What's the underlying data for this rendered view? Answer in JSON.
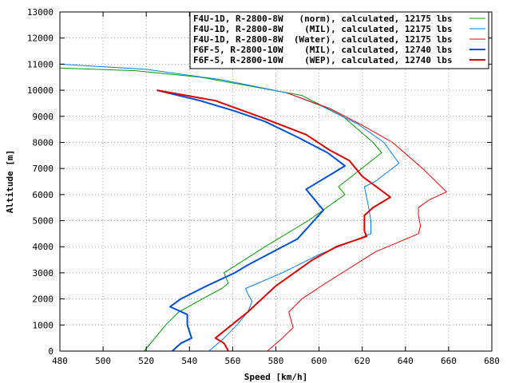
{
  "chart_data": {
    "type": "line",
    "xlabel": "Speed [km/h]",
    "ylabel": "Altitude [m]",
    "xlim": [
      480,
      680
    ],
    "ylim": [
      0,
      13000
    ],
    "xticks": [
      480,
      500,
      520,
      540,
      560,
      580,
      600,
      620,
      640,
      660,
      680
    ],
    "yticks": [
      0,
      1000,
      2000,
      3000,
      4000,
      5000,
      6000,
      7000,
      8000,
      9000,
      10000,
      11000,
      12000,
      13000
    ],
    "grid": true,
    "legend_position": "top-right",
    "series": [
      {
        "name": "F4U-1D, R-2800-8W   (norm), calculated, 12175 lbs",
        "color": "#00a000",
        "width": 1,
        "points": [
          [
            519,
            0
          ],
          [
            524,
            500
          ],
          [
            529,
            1000
          ],
          [
            535,
            1500
          ],
          [
            546,
            2000
          ],
          [
            555,
            2400
          ],
          [
            558,
            2600
          ],
          [
            556,
            3000
          ],
          [
            575,
            4000
          ],
          [
            595,
            5000
          ],
          [
            612,
            6000
          ],
          [
            609,
            6300
          ],
          [
            629,
            7600
          ],
          [
            625,
            8000
          ],
          [
            611,
            9000
          ],
          [
            592,
            9800
          ],
          [
            545,
            10500
          ],
          [
            515,
            10750
          ],
          [
            480,
            10850
          ]
        ]
      },
      {
        "name": "F4U-1D, R-2800-8W    (MIL), calculated, 12175 lbs",
        "color": "#0080ff",
        "width": 1,
        "points": [
          [
            549,
            0
          ],
          [
            556,
            500
          ],
          [
            562,
            1000
          ],
          [
            567,
            1500
          ],
          [
            569,
            1900
          ],
          [
            567,
            2200
          ],
          [
            566,
            2400
          ],
          [
            583,
            3000
          ],
          [
            600,
            3700
          ],
          [
            624,
            4500
          ],
          [
            624,
            5000
          ],
          [
            623,
            5500
          ],
          [
            621,
            6300
          ],
          [
            626,
            6500
          ],
          [
            637,
            7200
          ],
          [
            630,
            8000
          ],
          [
            618,
            8700
          ],
          [
            601,
            9400
          ],
          [
            585,
            9900
          ],
          [
            555,
            10400
          ],
          [
            520,
            10800
          ],
          [
            480,
            11000
          ]
        ]
      },
      {
        "name": "F4U-1D, R-2800-8W  (Water), calculated, 12175 lbs",
        "color": "#ff0000",
        "width": 1,
        "points": [
          [
            576,
            0
          ],
          [
            583,
            500
          ],
          [
            588,
            900
          ],
          [
            586,
            1500
          ],
          [
            592,
            2000
          ],
          [
            603,
            2600
          ],
          [
            626,
            3800
          ],
          [
            646,
            4500
          ],
          [
            647,
            4800
          ],
          [
            646,
            5200
          ],
          [
            646,
            5500
          ],
          [
            651,
            5800
          ],
          [
            659,
            6100
          ],
          [
            648,
            7000
          ],
          [
            634,
            8000
          ],
          [
            619,
            8700
          ],
          [
            605,
            9300
          ],
          [
            585,
            9900
          ]
        ]
      },
      {
        "name": "F6F-5, R-2800-10W    (MIL), calculated, 12740 lbs",
        "color": "#0050e0",
        "width": 2,
        "points": [
          [
            532,
            0
          ],
          [
            536,
            300
          ],
          [
            541,
            500
          ],
          [
            539,
            1000
          ],
          [
            539,
            1400
          ],
          [
            531,
            1700
          ],
          [
            536,
            2000
          ],
          [
            548,
            2500
          ],
          [
            561,
            3000
          ],
          [
            567,
            3300
          ],
          [
            590,
            4300
          ],
          [
            602,
            5400
          ],
          [
            594,
            6200
          ],
          [
            612,
            7100
          ],
          [
            604,
            7600
          ],
          [
            590,
            8200
          ],
          [
            575,
            8800
          ],
          [
            561,
            9200
          ],
          [
            545,
            9600
          ],
          [
            525,
            10000
          ]
        ]
      },
      {
        "name": "F6F-5, R-2800-10W    (WEP), calculated, 12740 lbs",
        "color": "#e00000",
        "width": 2,
        "points": [
          [
            558,
            0
          ],
          [
            556,
            300
          ],
          [
            552,
            500
          ],
          [
            567,
            1500
          ],
          [
            580,
            2500
          ],
          [
            597,
            3500
          ],
          [
            608,
            4000
          ],
          [
            622,
            4400
          ],
          [
            621,
            4600
          ],
          [
            621,
            5200
          ],
          [
            625,
            5500
          ],
          [
            633,
            5900
          ],
          [
            620,
            6700
          ],
          [
            614,
            7300
          ],
          [
            605,
            7700
          ],
          [
            594,
            8300
          ],
          [
            572,
            9000
          ],
          [
            552,
            9600
          ],
          [
            525,
            10000
          ]
        ]
      }
    ]
  }
}
